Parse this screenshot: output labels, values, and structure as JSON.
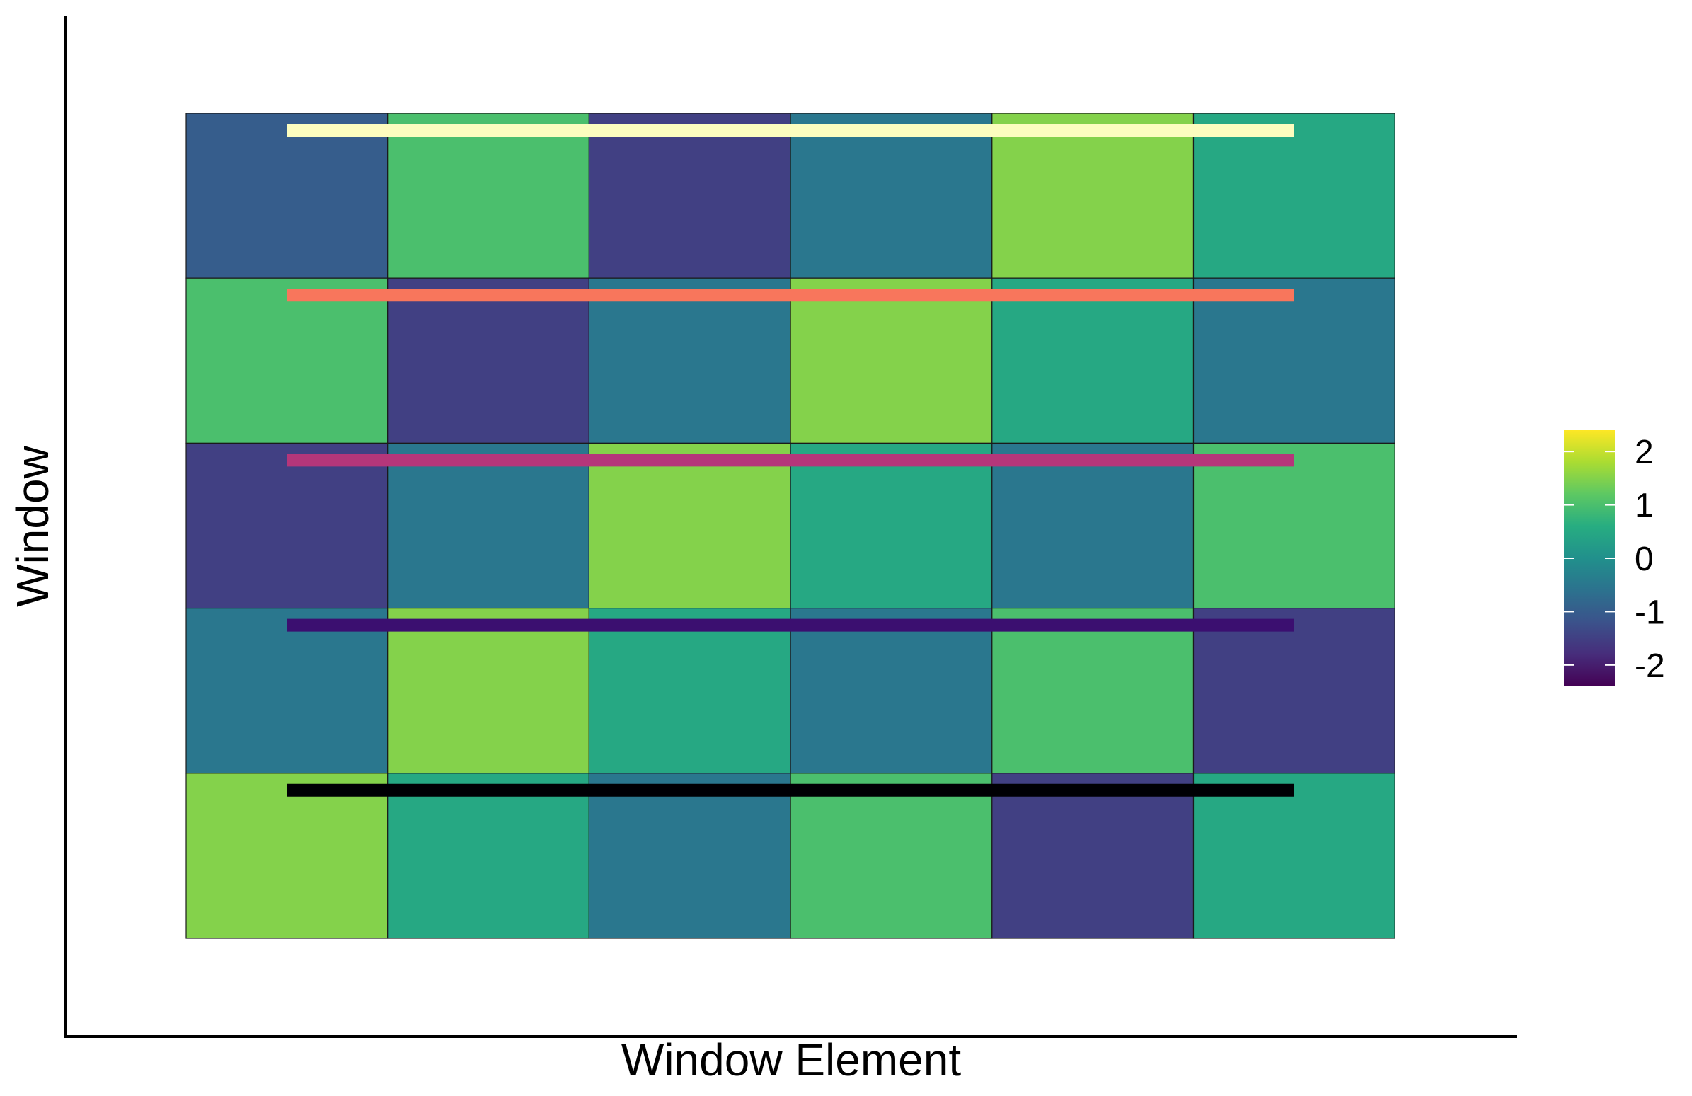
{
  "chart_data": {
    "type": "heatmap",
    "title": "",
    "xlabel": "Window Element",
    "ylabel": "Window",
    "columns": 6,
    "rows_top_to_bottom": [
      [
        -1,
        1,
        -1.5,
        -0.5,
        1.5,
        0.5
      ],
      [
        1,
        -1.5,
        -0.5,
        1.5,
        0.5,
        -0.5
      ],
      [
        -1.5,
        -0.5,
        1.5,
        0.5,
        -0.5,
        1
      ],
      [
        -0.5,
        1.5,
        0.5,
        -0.5,
        1,
        -1.5
      ],
      [
        1.5,
        0.5,
        -0.5,
        1,
        -1.5,
        0.5
      ]
    ],
    "overlay_lines": [
      {
        "row": 0,
        "color": "#FCFDBF"
      },
      {
        "row": 1,
        "color": "#F8765C"
      },
      {
        "row": 2,
        "color": "#B5367A"
      },
      {
        "row": 3,
        "color": "#3B0F70"
      },
      {
        "row": 4,
        "color": "#000004"
      }
    ],
    "colorbar": {
      "palette": "viridis",
      "range": [
        -2.4,
        2.4
      ],
      "ticks": [
        2,
        1,
        0,
        -1,
        -2
      ],
      "tick_labels": [
        "2",
        "1",
        "0",
        "-1",
        "-2"
      ]
    },
    "grid": false,
    "legend_position": "right"
  }
}
